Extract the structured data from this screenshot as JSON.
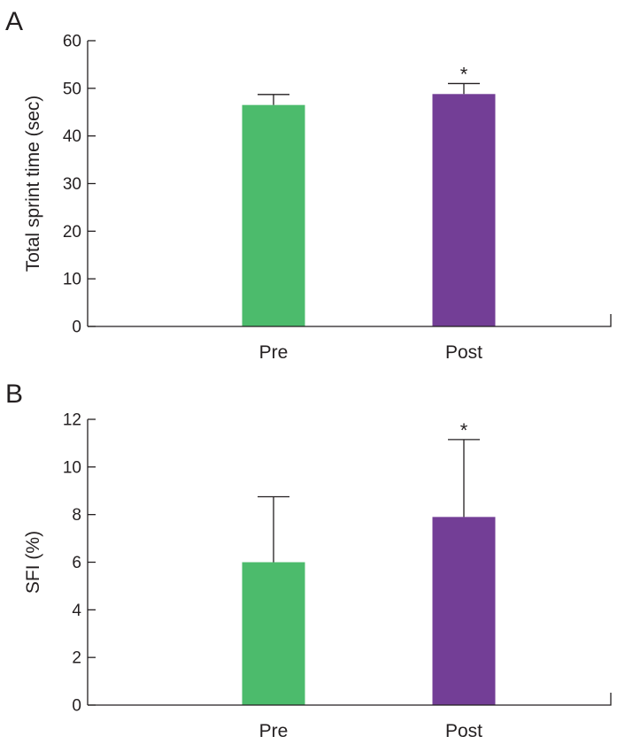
{
  "chart_data": [
    {
      "panel": "A",
      "type": "bar",
      "ylabel": "Total sprint time (sec)",
      "xlabel": "",
      "ylim": [
        0,
        60
      ],
      "yticks": [
        0,
        10,
        20,
        30,
        40,
        50,
        60
      ],
      "categories": [
        "Pre",
        "Post"
      ],
      "values": [
        46.5,
        48.8
      ],
      "error_upper": [
        48.7,
        51.0
      ],
      "colors": [
        "#4cbb6c",
        "#733e96"
      ],
      "significance": [
        "",
        "*"
      ]
    },
    {
      "panel": "B",
      "type": "bar",
      "ylabel": "SFI (%)",
      "xlabel": "",
      "ylim": [
        0,
        12
      ],
      "yticks": [
        0,
        2,
        4,
        6,
        8,
        10,
        12
      ],
      "categories": [
        "Pre",
        "Post"
      ],
      "values": [
        6.0,
        7.9
      ],
      "error_upper": [
        8.75,
        11.15
      ],
      "colors": [
        "#4cbb6c",
        "#733e96"
      ],
      "significance": [
        "",
        "*"
      ]
    }
  ]
}
